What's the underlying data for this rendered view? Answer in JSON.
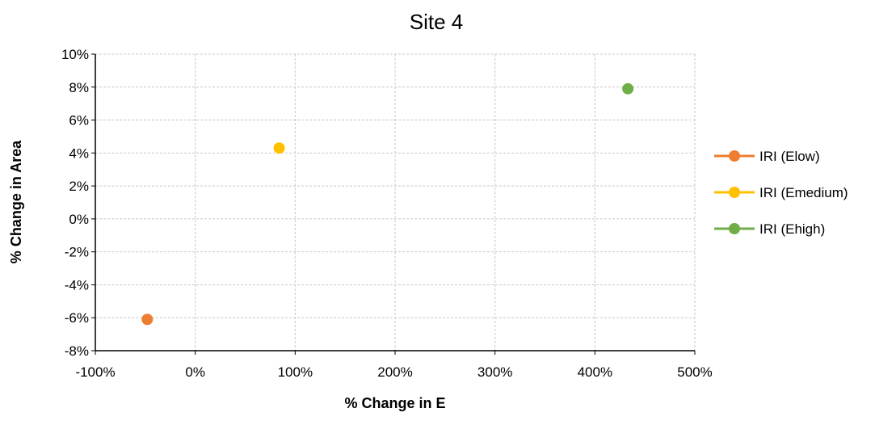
{
  "chart_data": {
    "type": "scatter",
    "title": "Site 4",
    "xlabel": "% Change in E",
    "ylabel": "% Change in Area",
    "xlim": [
      -100,
      500
    ],
    "ylim": [
      -8,
      10
    ],
    "x_ticks": [
      -100,
      0,
      100,
      200,
      300,
      400,
      500
    ],
    "y_ticks": [
      -8,
      -6,
      -4,
      -2,
      0,
      2,
      4,
      6,
      8,
      10
    ],
    "x_tick_labels": [
      "-100%",
      "0%",
      "100%",
      "200%",
      "300%",
      "400%",
      "500%"
    ],
    "y_tick_labels": [
      "-8%",
      "-6%",
      "-4%",
      "-2%",
      "0%",
      "2%",
      "4%",
      "6%",
      "8%",
      "10%"
    ],
    "grid": true,
    "legend_position": "right",
    "series": [
      {
        "name": "IRI (Elow)",
        "color": "#ED7D31",
        "x": [
          -48
        ],
        "y": [
          -6.1
        ]
      },
      {
        "name": "IRI (Emedium)",
        "color": "#FFC000",
        "x": [
          84
        ],
        "y": [
          4.3
        ]
      },
      {
        "name": "IRI (Ehigh)",
        "color": "#70AD47",
        "x": [
          433
        ],
        "y": [
          7.9
        ]
      }
    ]
  }
}
